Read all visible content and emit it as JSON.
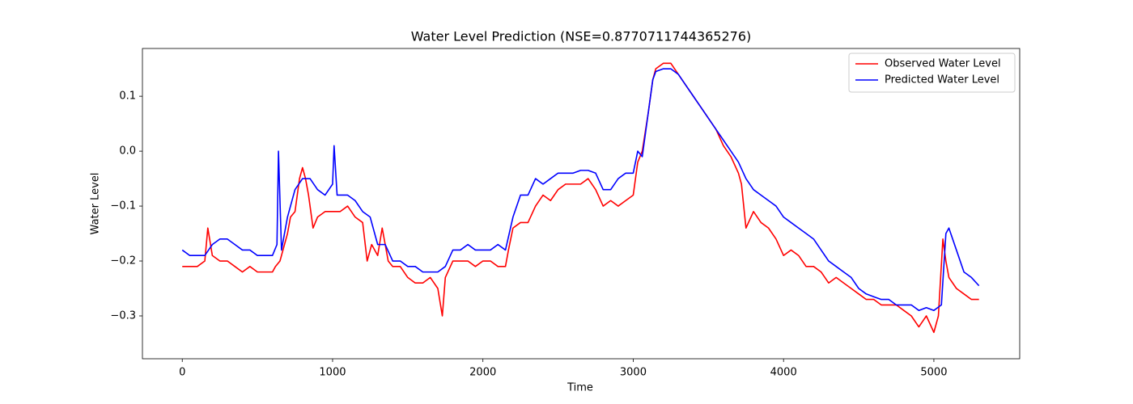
{
  "chart_data": {
    "type": "line",
    "title": "Water Level Prediction (NSE=0.8770711744365276)",
    "xlabel": "Time",
    "ylabel": "Water Level",
    "xlim": [
      -265,
      5571
    ],
    "ylim": [
      -0.378,
      0.187
    ],
    "xticks": [
      0,
      1000,
      2000,
      3000,
      4000,
      5000
    ],
    "yticks": [
      {
        "value": -0.3,
        "label": "−0.3"
      },
      {
        "value": -0.2,
        "label": "−0.2"
      },
      {
        "value": -0.1,
        "label": "−0.1"
      },
      {
        "value": 0,
        "label": "0.0"
      },
      0.1
    ],
    "legend": "upper right",
    "series": [
      {
        "name": "Observed Water Level",
        "color": "#ff0000",
        "x": [
          0,
          50,
          100,
          150,
          170,
          200,
          250,
          300,
          350,
          400,
          450,
          500,
          550,
          600,
          620,
          650,
          700,
          720,
          750,
          780,
          800,
          820,
          840,
          870,
          900,
          950,
          1000,
          1050,
          1100,
          1150,
          1200,
          1230,
          1260,
          1300,
          1330,
          1370,
          1400,
          1450,
          1500,
          1550,
          1600,
          1650,
          1700,
          1730,
          1750,
          1800,
          1850,
          1900,
          1950,
          2000,
          2050,
          2100,
          2150,
          2170,
          2200,
          2250,
          2300,
          2350,
          2400,
          2450,
          2500,
          2550,
          2600,
          2650,
          2700,
          2750,
          2800,
          2850,
          2900,
          2950,
          3000,
          3030,
          3060,
          3100,
          3130,
          3150,
          3200,
          3250,
          3300,
          3350,
          3400,
          3450,
          3500,
          3550,
          3600,
          3650,
          3700,
          3720,
          3750,
          3800,
          3850,
          3900,
          3950,
          4000,
          4050,
          4100,
          4150,
          4200,
          4250,
          4300,
          4350,
          4400,
          4450,
          4500,
          4550,
          4600,
          4650,
          4700,
          4750,
          4800,
          4850,
          4900,
          4950,
          5000,
          5030,
          5060,
          5080,
          5100,
          5150,
          5200,
          5250,
          5300
        ],
        "values": [
          -0.21,
          -0.21,
          -0.21,
          -0.2,
          -0.14,
          -0.19,
          -0.2,
          -0.2,
          -0.21,
          -0.22,
          -0.21,
          -0.22,
          -0.22,
          -0.22,
          -0.21,
          -0.2,
          -0.15,
          -0.12,
          -0.11,
          -0.05,
          -0.03,
          -0.05,
          -0.08,
          -0.14,
          -0.12,
          -0.11,
          -0.11,
          -0.11,
          -0.1,
          -0.12,
          -0.13,
          -0.2,
          -0.17,
          -0.19,
          -0.14,
          -0.2,
          -0.21,
          -0.21,
          -0.23,
          -0.24,
          -0.24,
          -0.23,
          -0.25,
          -0.3,
          -0.23,
          -0.2,
          -0.2,
          -0.2,
          -0.21,
          -0.2,
          -0.2,
          -0.21,
          -0.21,
          -0.18,
          -0.14,
          -0.13,
          -0.13,
          -0.1,
          -0.08,
          -0.09,
          -0.07,
          -0.06,
          -0.06,
          -0.06,
          -0.05,
          -0.07,
          -0.1,
          -0.09,
          -0.1,
          -0.09,
          -0.08,
          -0.02,
          0.0,
          0.07,
          0.13,
          0.15,
          0.16,
          0.16,
          0.14,
          0.12,
          0.1,
          0.08,
          0.06,
          0.04,
          0.01,
          -0.01,
          -0.04,
          -0.06,
          -0.14,
          -0.11,
          -0.13,
          -0.14,
          -0.16,
          -0.19,
          -0.18,
          -0.19,
          -0.21,
          -0.21,
          -0.22,
          -0.24,
          -0.23,
          -0.24,
          -0.25,
          -0.26,
          -0.27,
          -0.27,
          -0.28,
          -0.28,
          -0.28,
          -0.29,
          -0.3,
          -0.32,
          -0.3,
          -0.33,
          -0.3,
          -0.16,
          -0.2,
          -0.23,
          -0.25,
          -0.26,
          -0.27,
          -0.27
        ]
      },
      {
        "name": "Predicted Water Level",
        "color": "#0000ff",
        "x": [
          0,
          50,
          100,
          150,
          200,
          250,
          300,
          350,
          400,
          450,
          500,
          550,
          600,
          630,
          640,
          660,
          700,
          750,
          800,
          850,
          900,
          950,
          1000,
          1010,
          1030,
          1100,
          1150,
          1200,
          1250,
          1300,
          1350,
          1400,
          1450,
          1500,
          1550,
          1600,
          1650,
          1700,
          1750,
          1800,
          1850,
          1900,
          1950,
          2000,
          2050,
          2100,
          2150,
          2200,
          2250,
          2300,
          2350,
          2400,
          2450,
          2500,
          2550,
          2600,
          2650,
          2700,
          2750,
          2800,
          2850,
          2900,
          2950,
          3000,
          3030,
          3060,
          3100,
          3130,
          3150,
          3200,
          3250,
          3300,
          3350,
          3400,
          3450,
          3500,
          3550,
          3600,
          3650,
          3700,
          3750,
          3800,
          3850,
          3900,
          3950,
          4000,
          4050,
          4100,
          4150,
          4200,
          4250,
          4300,
          4350,
          4400,
          4450,
          4500,
          4550,
          4600,
          4650,
          4700,
          4750,
          4800,
          4850,
          4900,
          4950,
          5000,
          5050,
          5080,
          5100,
          5150,
          5200,
          5250,
          5300
        ],
        "values": [
          -0.18,
          -0.19,
          -0.19,
          -0.19,
          -0.17,
          -0.16,
          -0.16,
          -0.17,
          -0.18,
          -0.18,
          -0.19,
          -0.19,
          -0.19,
          -0.17,
          0.0,
          -0.18,
          -0.12,
          -0.07,
          -0.05,
          -0.05,
          -0.07,
          -0.08,
          -0.06,
          0.01,
          -0.08,
          -0.08,
          -0.09,
          -0.11,
          -0.12,
          -0.17,
          -0.17,
          -0.2,
          -0.2,
          -0.21,
          -0.21,
          -0.22,
          -0.22,
          -0.22,
          -0.21,
          -0.18,
          -0.18,
          -0.17,
          -0.18,
          -0.18,
          -0.18,
          -0.17,
          -0.18,
          -0.12,
          -0.08,
          -0.08,
          -0.05,
          -0.06,
          -0.05,
          -0.04,
          -0.04,
          -0.04,
          -0.035,
          -0.035,
          -0.04,
          -0.07,
          -0.07,
          -0.05,
          -0.04,
          -0.04,
          0.0,
          -0.01,
          0.07,
          0.13,
          0.145,
          0.15,
          0.15,
          0.14,
          0.12,
          0.1,
          0.08,
          0.06,
          0.04,
          0.02,
          0.0,
          -0.02,
          -0.05,
          -0.07,
          -0.08,
          -0.09,
          -0.1,
          -0.12,
          -0.13,
          -0.14,
          -0.15,
          -0.16,
          -0.18,
          -0.2,
          -0.21,
          -0.22,
          -0.23,
          -0.25,
          -0.26,
          -0.265,
          -0.27,
          -0.27,
          -0.28,
          -0.28,
          -0.28,
          -0.29,
          -0.285,
          -0.29,
          -0.28,
          -0.15,
          -0.14,
          -0.18,
          -0.22,
          -0.23,
          -0.245
        ]
      }
    ]
  }
}
